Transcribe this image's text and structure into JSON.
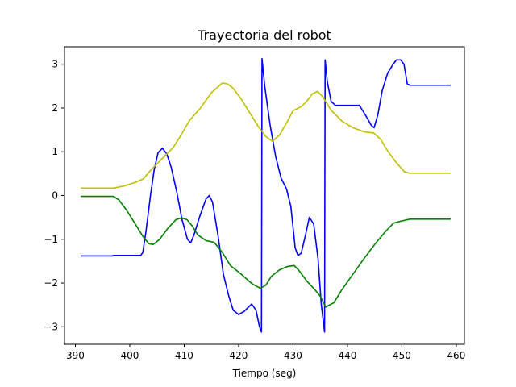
{
  "chart_data": {
    "type": "line",
    "title": "Trayectoria del robot",
    "xlabel": "Tiempo (seg)",
    "ylabel": "",
    "xlim": [
      388,
      461.5
    ],
    "ylim": [
      -3.4,
      3.4
    ],
    "xticks": [
      390,
      400,
      410,
      420,
      430,
      440,
      450,
      460
    ],
    "yticks": [
      -3,
      -2,
      -1,
      0,
      1,
      2,
      3
    ],
    "grid": false,
    "legend": "none",
    "series": [
      {
        "color": "#0000ff",
        "points": [
          [
            391,
            -1.38
          ],
          [
            396.8,
            -1.38
          ],
          [
            397,
            -1.37
          ],
          [
            402,
            -1.37
          ],
          [
            402.4,
            -1.3
          ],
          [
            403,
            -0.8
          ],
          [
            403.8,
            0
          ],
          [
            404.5,
            0.6
          ],
          [
            405.2,
            0.98
          ],
          [
            406,
            1.08
          ],
          [
            406.8,
            0.95
          ],
          [
            407.6,
            0.65
          ],
          [
            408.6,
            0.1
          ],
          [
            409.6,
            -0.55
          ],
          [
            410.6,
            -1.0
          ],
          [
            411.2,
            -1.08
          ],
          [
            411.8,
            -0.9
          ],
          [
            412.8,
            -0.5
          ],
          [
            414,
            -0.08
          ],
          [
            414.6,
            0
          ],
          [
            415.2,
            -0.15
          ],
          [
            416.2,
            -0.9
          ],
          [
            417.2,
            -1.8
          ],
          [
            418.2,
            -2.3
          ],
          [
            419,
            -2.62
          ],
          [
            420,
            -2.72
          ],
          [
            421,
            -2.65
          ],
          [
            422.4,
            -2.48
          ],
          [
            423.2,
            -2.62
          ],
          [
            423.8,
            -2.98
          ],
          [
            424.2,
            -3.12
          ],
          [
            424.3,
            3.13
          ],
          [
            424.8,
            2.5
          ],
          [
            425.8,
            1.6
          ],
          [
            426.8,
            0.9
          ],
          [
            427.8,
            0.4
          ],
          [
            428.8,
            0.15
          ],
          [
            429.6,
            -0.25
          ],
          [
            430.4,
            -1.2
          ],
          [
            430.9,
            -1.37
          ],
          [
            431.5,
            -1.32
          ],
          [
            432.3,
            -0.9
          ],
          [
            433,
            -0.5
          ],
          [
            433.8,
            -0.65
          ],
          [
            434.6,
            -1.45
          ],
          [
            435.2,
            -2.5
          ],
          [
            435.8,
            -3.12
          ],
          [
            435.9,
            3.1
          ],
          [
            436.3,
            2.6
          ],
          [
            437,
            2.15
          ],
          [
            437.8,
            2.06
          ],
          [
            440,
            2.06
          ],
          [
            442.2,
            2.06
          ],
          [
            443.4,
            1.82
          ],
          [
            444.4,
            1.6
          ],
          [
            444.9,
            1.55
          ],
          [
            445.6,
            1.85
          ],
          [
            446.4,
            2.4
          ],
          [
            447.4,
            2.8
          ],
          [
            448.4,
            3.0
          ],
          [
            449,
            3.1
          ],
          [
            449.8,
            3.1
          ],
          [
            450.4,
            3.0
          ],
          [
            451,
            2.55
          ],
          [
            451.5,
            2.52
          ],
          [
            459,
            2.52
          ]
        ]
      },
      {
        "color": "#bfbf00",
        "points": [
          [
            391,
            0.17
          ],
          [
            397,
            0.17
          ],
          [
            399,
            0.22
          ],
          [
            401,
            0.3
          ],
          [
            402.5,
            0.38
          ],
          [
            404,
            0.6
          ],
          [
            406,
            0.85
          ],
          [
            408,
            1.1
          ],
          [
            409.5,
            1.4
          ],
          [
            411,
            1.72
          ],
          [
            413,
            2.0
          ],
          [
            415,
            2.35
          ],
          [
            417,
            2.57
          ],
          [
            418,
            2.55
          ],
          [
            419,
            2.45
          ],
          [
            420.5,
            2.2
          ],
          [
            422,
            1.9
          ],
          [
            423.5,
            1.6
          ],
          [
            425,
            1.35
          ],
          [
            426.2,
            1.24
          ],
          [
            427.5,
            1.38
          ],
          [
            429,
            1.7
          ],
          [
            430,
            1.94
          ],
          [
            431.5,
            2.03
          ],
          [
            432.5,
            2.15
          ],
          [
            433.5,
            2.32
          ],
          [
            434.5,
            2.38
          ],
          [
            435.5,
            2.25
          ],
          [
            437,
            1.95
          ],
          [
            439,
            1.7
          ],
          [
            441,
            1.55
          ],
          [
            443,
            1.46
          ],
          [
            444.8,
            1.43
          ],
          [
            446,
            1.3
          ],
          [
            447.5,
            1.0
          ],
          [
            449,
            0.75
          ],
          [
            450.5,
            0.54
          ],
          [
            451.5,
            0.51
          ],
          [
            459,
            0.51
          ]
        ]
      },
      {
        "color": "#008000",
        "points": [
          [
            391,
            -0.02
          ],
          [
            397,
            -0.02
          ],
          [
            398,
            -0.1
          ],
          [
            399.5,
            -0.35
          ],
          [
            401,
            -0.65
          ],
          [
            402.5,
            -0.95
          ],
          [
            403.5,
            -1.1
          ],
          [
            404.3,
            -1.12
          ],
          [
            405.5,
            -1.0
          ],
          [
            407,
            -0.75
          ],
          [
            408.5,
            -0.55
          ],
          [
            409.5,
            -0.51
          ],
          [
            410.5,
            -0.55
          ],
          [
            411.5,
            -0.7
          ],
          [
            412.5,
            -0.9
          ],
          [
            414,
            -1.03
          ],
          [
            415.5,
            -1.07
          ],
          [
            417,
            -1.3
          ],
          [
            418.5,
            -1.6
          ],
          [
            420.5,
            -1.8
          ],
          [
            422.5,
            -2.02
          ],
          [
            424,
            -2.12
          ],
          [
            425,
            -2.05
          ],
          [
            426,
            -1.85
          ],
          [
            427.5,
            -1.7
          ],
          [
            429,
            -1.62
          ],
          [
            430.2,
            -1.6
          ],
          [
            431,
            -1.7
          ],
          [
            432.5,
            -1.95
          ],
          [
            434,
            -2.15
          ],
          [
            435,
            -2.3
          ],
          [
            436,
            -2.55
          ],
          [
            437.5,
            -2.45
          ],
          [
            439,
            -2.15
          ],
          [
            441,
            -1.8
          ],
          [
            443,
            -1.45
          ],
          [
            445,
            -1.12
          ],
          [
            447,
            -0.82
          ],
          [
            448.5,
            -0.63
          ],
          [
            450,
            -0.58
          ],
          [
            451.5,
            -0.54
          ],
          [
            459,
            -0.54
          ]
        ]
      }
    ]
  }
}
